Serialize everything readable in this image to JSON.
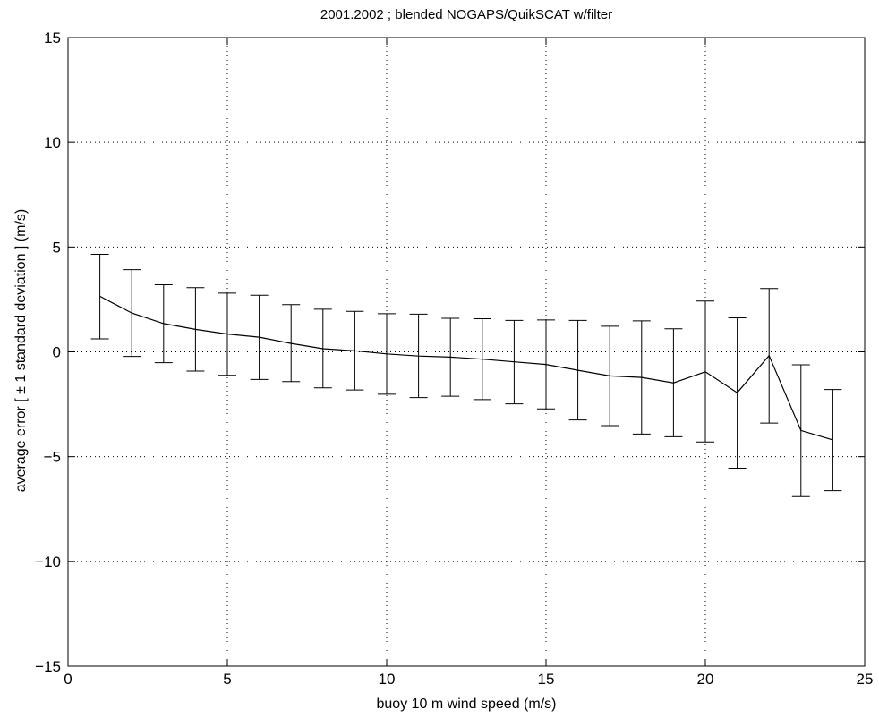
{
  "chart_data": {
    "type": "line",
    "title": "2001.2002 ; blended NOGAPS/QuikSCAT w/filter",
    "xlabel": "buoy 10 m wind speed (m/s)",
    "ylabel": "average error [ ± 1 standard deviation ] (m/s)",
    "xlim": [
      0,
      25
    ],
    "ylim": [
      -15,
      15
    ],
    "xticks": [
      0,
      5,
      10,
      15,
      20,
      25
    ],
    "yticks": [
      -15,
      -10,
      -5,
      0,
      5,
      10,
      15
    ],
    "xtick_labels": [
      "0",
      "5",
      "10",
      "15",
      "20",
      "25"
    ],
    "ytick_labels": [
      "−15",
      "−10",
      "−5",
      "0",
      "5",
      "10",
      "15"
    ],
    "grid": true,
    "line_color": "#000000",
    "series": [
      {
        "x": [
          1,
          2,
          3,
          4,
          5,
          6,
          7,
          8,
          9,
          10,
          11,
          12,
          13,
          14,
          15,
          16,
          17,
          18,
          19,
          20,
          21,
          22,
          23,
          24
        ],
        "y": [
          2.65,
          1.85,
          1.35,
          1.07,
          0.85,
          0.7,
          0.4,
          0.15,
          0.05,
          -0.1,
          -0.2,
          -0.25,
          -0.35,
          -0.48,
          -0.6,
          -0.88,
          -1.15,
          -1.22,
          -1.48,
          -0.95,
          -1.95,
          -0.18,
          -3.75,
          -4.2
        ],
        "upper": [
          4.65,
          3.92,
          3.2,
          3.06,
          2.8,
          2.7,
          2.25,
          2.03,
          1.93,
          1.82,
          1.8,
          1.6,
          1.58,
          1.5,
          1.52,
          1.5,
          1.22,
          1.48,
          1.1,
          2.42,
          1.62,
          3.02,
          -0.62,
          -1.8
        ],
        "lower": [
          0.62,
          -0.22,
          -0.52,
          -0.92,
          -1.12,
          -1.32,
          -1.42,
          -1.72,
          -1.82,
          -2.02,
          -2.18,
          -2.12,
          -2.28,
          -2.48,
          -2.72,
          -3.25,
          -3.52,
          -3.92,
          -4.05,
          -4.3,
          -5.55,
          -3.4,
          -6.9,
          -6.62
        ]
      }
    ]
  }
}
